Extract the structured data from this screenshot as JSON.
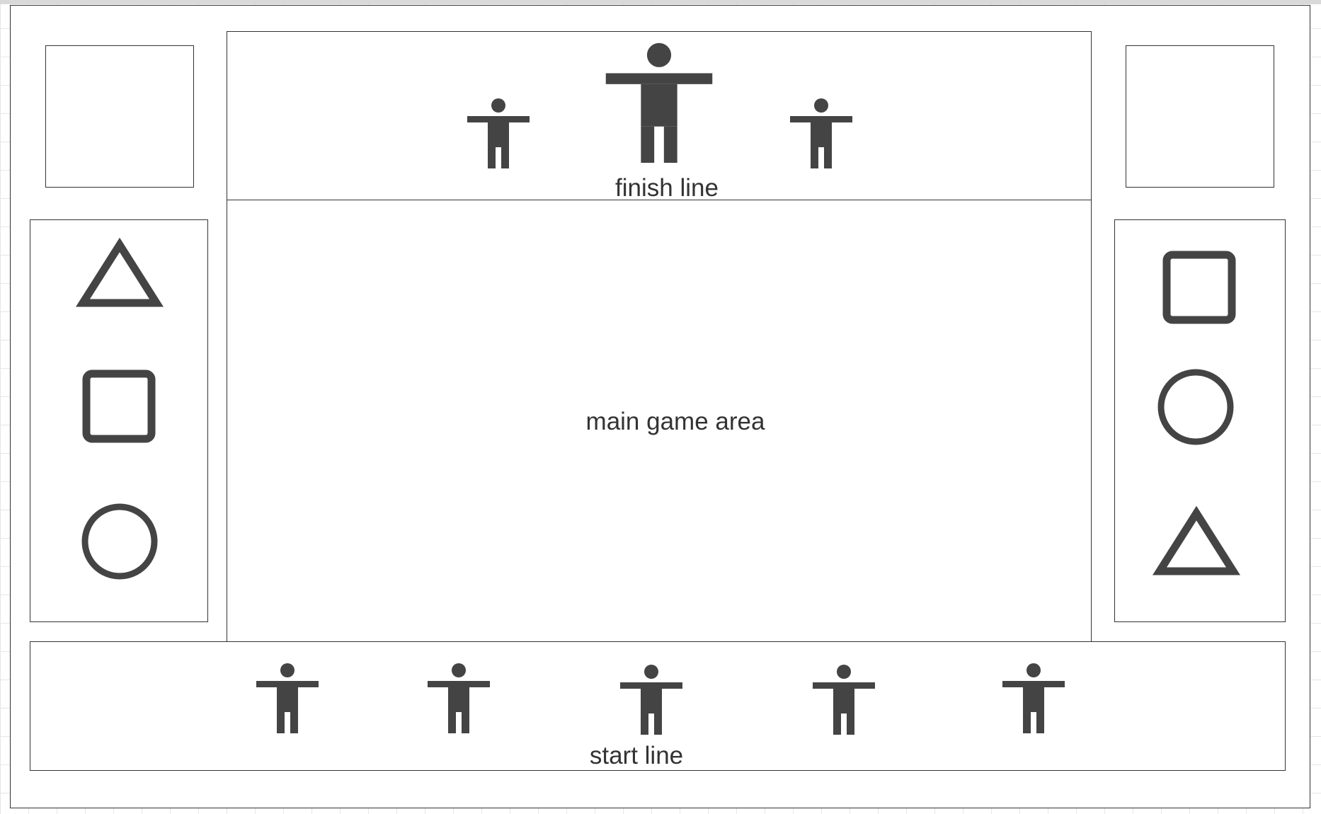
{
  "diagram": {
    "finish_label": "finish line",
    "main_label": "main game area",
    "start_label": "start line",
    "left_panel_shapes": [
      "triangle-icon",
      "square-icon",
      "circle-icon"
    ],
    "right_panel_shapes": [
      "square-icon",
      "circle-icon",
      "triangle-icon"
    ],
    "finish_figures": [
      "person-icon",
      "person-icon",
      "person-icon"
    ],
    "start_figures": [
      "person-icon",
      "person-icon",
      "person-icon",
      "person-icon",
      "person-icon"
    ],
    "colors": {
      "stroke": "#333333",
      "icon": "#444444",
      "background": "#ffffff",
      "grid": "#e6e6e6"
    }
  }
}
